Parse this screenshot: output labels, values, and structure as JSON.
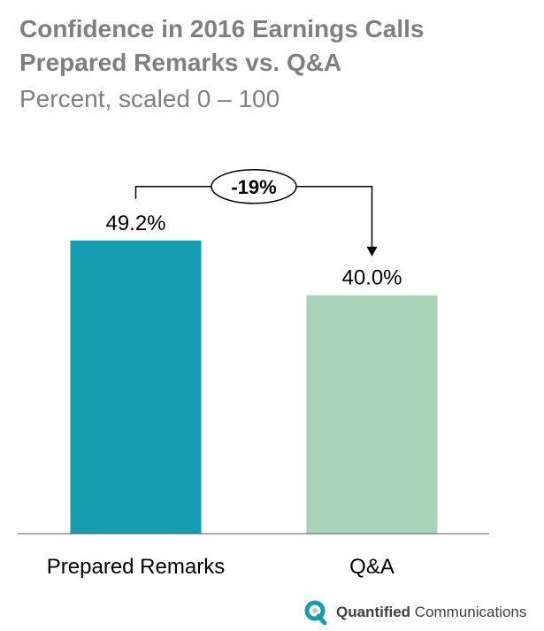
{
  "chart_data": {
    "type": "bar",
    "title": [
      "Confidence in 2016 Earnings Calls",
      "Prepared Remarks vs. Q&A"
    ],
    "subtitle": "Percent, scaled 0 – 100",
    "categories": [
      "Prepared Remarks",
      "Q&A"
    ],
    "values": [
      49.2,
      40.0
    ],
    "value_labels": [
      "49.2%",
      "40.0%"
    ],
    "ylim": [
      0,
      50.5
    ],
    "grid": false,
    "annotation": {
      "text": "-19%",
      "from": "Prepared Remarks",
      "to": "Q&A"
    },
    "colors": [
      "#169caf",
      "#a9d3b8"
    ]
  },
  "brand": {
    "name_bold": "Quantified",
    "name_rest": " Communications",
    "logo_color": "#169caf"
  }
}
